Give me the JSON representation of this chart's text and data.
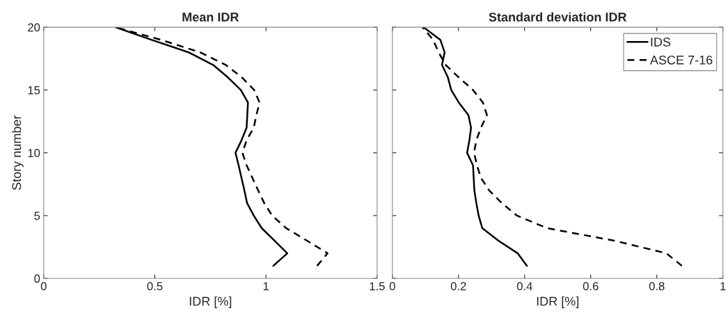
{
  "chart_data": [
    {
      "type": "line",
      "title": "Mean IDR",
      "xlabel": "IDR [%]",
      "ylabel": "Story number",
      "xlim": [
        0,
        1.5
      ],
      "xticks": [
        0,
        0.5,
        1,
        1.5
      ],
      "ylim": [
        0,
        20
      ],
      "yticks": [
        0,
        5,
        10,
        15,
        20
      ],
      "grid": false,
      "legend": false,
      "series": [
        {
          "color": "#000000",
          "line_style": "solid",
          "x": [
            1.033,
            1.096,
            1.039,
            0.981,
            0.945,
            0.915,
            0.903,
            0.89,
            0.877,
            0.863,
            0.89,
            0.913,
            0.916,
            0.919,
            0.887,
            0.829,
            0.762,
            0.652,
            0.484,
            0.323
          ],
          "values": [
            1,
            2,
            3,
            4,
            5,
            6,
            7,
            8,
            9,
            10,
            11,
            12,
            13,
            14,
            15,
            16,
            17,
            18,
            19,
            20
          ]
        },
        {
          "color": "#000000",
          "line_style": "dashed",
          "x": [
            1.23,
            1.277,
            1.185,
            1.091,
            1.028,
            0.992,
            0.965,
            0.939,
            0.913,
            0.894,
            0.913,
            0.945,
            0.957,
            0.971,
            0.947,
            0.892,
            0.819,
            0.704,
            0.526,
            0.323
          ],
          "values": [
            1,
            2,
            3,
            4,
            5,
            6,
            7,
            8,
            9,
            10,
            11,
            12,
            13,
            14,
            15,
            16,
            17,
            18,
            19,
            20
          ]
        }
      ]
    },
    {
      "type": "line",
      "title": "Standard deviation IDR",
      "xlabel": "IDR [%]",
      "xlim": [
        0,
        1
      ],
      "xticks": [
        0,
        0.2,
        0.4,
        0.6,
        0.8,
        1
      ],
      "ylim": [
        0,
        20
      ],
      "yticks": [
        {
          "value": 0,
          "label": null
        },
        {
          "value": 5,
          "label": null
        },
        {
          "value": 10,
          "label": null
        },
        {
          "value": 15,
          "label": null
        },
        {
          "value": 20,
          "label": null
        }
      ],
      "tick_labels": "x",
      "grid": false,
      "legend": "top right",
      "series": [
        {
          "name": "IDS",
          "color": "#000000",
          "line_style": "solid",
          "x": [
            0.407,
            0.379,
            0.321,
            0.272,
            0.261,
            0.254,
            0.248,
            0.246,
            0.244,
            0.226,
            0.233,
            0.238,
            0.23,
            0.201,
            0.178,
            0.168,
            0.15,
            0.158,
            0.145,
            0.094
          ],
          "values": [
            1,
            2,
            3,
            4,
            5,
            6,
            7,
            8,
            9,
            10,
            11,
            12,
            13,
            14,
            15,
            16,
            17,
            18,
            19,
            20
          ]
        },
        {
          "name": "ASCE 7-16",
          "color": "#000000",
          "line_style": "dashed",
          "x": [
            0.876,
            0.829,
            0.672,
            0.468,
            0.377,
            0.331,
            0.293,
            0.268,
            0.256,
            0.247,
            0.254,
            0.268,
            0.286,
            0.274,
            0.244,
            0.201,
            0.161,
            0.14,
            0.123,
            0.091
          ],
          "values": [
            1,
            2,
            3,
            4,
            5,
            6,
            7,
            8,
            9,
            10,
            11,
            12,
            13,
            14,
            15,
            16,
            17,
            18,
            19,
            20
          ]
        }
      ]
    }
  ]
}
